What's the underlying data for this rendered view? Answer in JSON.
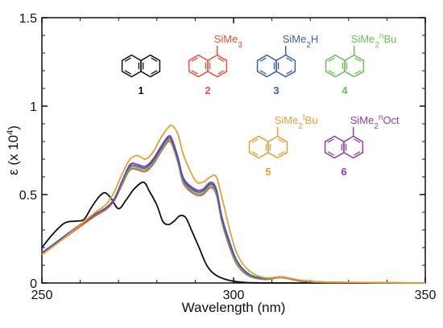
{
  "chart_data": {
    "type": "line",
    "xlabel": "Wavelength (nm)",
    "ylabel": "ε (x 10",
    "ylabel_exponent": "4",
    "ylabel_tail": ")",
    "xlim": [
      250,
      350
    ],
    "ylim": [
      0,
      1.5
    ],
    "x_ticks": [
      250,
      300,
      350
    ],
    "x_tick_labels": [
      "250",
      "300",
      "350"
    ],
    "y_ticks": [
      0,
      0.5,
      1,
      1.5
    ],
    "y_tick_labels": [
      "0",
      "0.5",
      "1",
      "1.5"
    ],
    "grid": false,
    "series": [
      {
        "name": "1",
        "color": "#111111",
        "points": [
          [
            250,
            0.2
          ],
          [
            253,
            0.28
          ],
          [
            256,
            0.34
          ],
          [
            259,
            0.35
          ],
          [
            261,
            0.36
          ],
          [
            263,
            0.43
          ],
          [
            265,
            0.49
          ],
          [
            266.5,
            0.51
          ],
          [
            268,
            0.48
          ],
          [
            270,
            0.42
          ],
          [
            272,
            0.47
          ],
          [
            274,
            0.53
          ],
          [
            276.5,
            0.57
          ],
          [
            278,
            0.52
          ],
          [
            280,
            0.44
          ],
          [
            281.5,
            0.35
          ],
          [
            283,
            0.33
          ],
          [
            284.5,
            0.35
          ],
          [
            286,
            0.38
          ],
          [
            287.5,
            0.37
          ],
          [
            289,
            0.3
          ],
          [
            291,
            0.2
          ],
          [
            293,
            0.1
          ],
          [
            295,
            0.05
          ],
          [
            298,
            0.02
          ],
          [
            302,
            0.005
          ],
          [
            310,
            0.0
          ],
          [
            350,
            0.0
          ]
        ]
      },
      {
        "name": "2",
        "color": "#e8503a",
        "points": [
          [
            250,
            0.16
          ],
          [
            255,
            0.24
          ],
          [
            260,
            0.32
          ],
          [
            264,
            0.38
          ],
          [
            267,
            0.42
          ],
          [
            269,
            0.47
          ],
          [
            271,
            0.56
          ],
          [
            273,
            0.64
          ],
          [
            275,
            0.64
          ],
          [
            277,
            0.63
          ],
          [
            279,
            0.67
          ],
          [
            281,
            0.74
          ],
          [
            283,
            0.8
          ],
          [
            284,
            0.78
          ],
          [
            285.5,
            0.68
          ],
          [
            287,
            0.56
          ],
          [
            290,
            0.5
          ],
          [
            292,
            0.5
          ],
          [
            294,
            0.54
          ],
          [
            295.5,
            0.5
          ],
          [
            297,
            0.34
          ],
          [
            299,
            0.2
          ],
          [
            301,
            0.1
          ],
          [
            304,
            0.04
          ],
          [
            308,
            0.02
          ],
          [
            312,
            0.03
          ],
          [
            314,
            0.025
          ],
          [
            318,
            0.01
          ],
          [
            325,
            0.003
          ],
          [
            350,
            0.0
          ]
        ]
      },
      {
        "name": "3",
        "color": "#3a5fb0",
        "points": [
          [
            250,
            0.17
          ],
          [
            255,
            0.25
          ],
          [
            260,
            0.33
          ],
          [
            264,
            0.39
          ],
          [
            267,
            0.43
          ],
          [
            269,
            0.48
          ],
          [
            271,
            0.58
          ],
          [
            273,
            0.66
          ],
          [
            275,
            0.66
          ],
          [
            277,
            0.65
          ],
          [
            279,
            0.69
          ],
          [
            281,
            0.76
          ],
          [
            283,
            0.82
          ],
          [
            284,
            0.8
          ],
          [
            285.5,
            0.7
          ],
          [
            287,
            0.58
          ],
          [
            290,
            0.52
          ],
          [
            292,
            0.52
          ],
          [
            294,
            0.56
          ],
          [
            295.5,
            0.52
          ],
          [
            297,
            0.36
          ],
          [
            299,
            0.22
          ],
          [
            301,
            0.12
          ],
          [
            304,
            0.05
          ],
          [
            308,
            0.025
          ],
          [
            312,
            0.035
          ],
          [
            314,
            0.03
          ],
          [
            318,
            0.012
          ],
          [
            325,
            0.004
          ],
          [
            350,
            0.0
          ]
        ]
      },
      {
        "name": "4",
        "color": "#6bbf59",
        "points": [
          [
            250,
            0.17
          ],
          [
            255,
            0.25
          ],
          [
            260,
            0.33
          ],
          [
            264,
            0.39
          ],
          [
            267,
            0.43
          ],
          [
            269,
            0.48
          ],
          [
            271,
            0.57
          ],
          [
            273,
            0.65
          ],
          [
            275,
            0.65
          ],
          [
            277,
            0.64
          ],
          [
            279,
            0.68
          ],
          [
            281,
            0.75
          ],
          [
            283,
            0.81
          ],
          [
            284,
            0.79
          ],
          [
            285.5,
            0.69
          ],
          [
            287,
            0.57
          ],
          [
            290,
            0.51
          ],
          [
            292,
            0.51
          ],
          [
            294,
            0.55
          ],
          [
            295.5,
            0.51
          ],
          [
            297,
            0.35
          ],
          [
            299,
            0.21
          ],
          [
            301,
            0.11
          ],
          [
            304,
            0.045
          ],
          [
            308,
            0.022
          ],
          [
            312,
            0.032
          ],
          [
            314,
            0.027
          ],
          [
            318,
            0.011
          ],
          [
            325,
            0.003
          ],
          [
            350,
            0.0
          ]
        ]
      },
      {
        "name": "5",
        "color": "#e8a032",
        "points": [
          [
            250,
            0.16
          ],
          [
            255,
            0.24
          ],
          [
            260,
            0.33
          ],
          [
            264,
            0.4
          ],
          [
            267,
            0.45
          ],
          [
            269,
            0.52
          ],
          [
            271,
            0.62
          ],
          [
            273,
            0.7
          ],
          [
            275,
            0.72
          ],
          [
            277,
            0.7
          ],
          [
            279,
            0.74
          ],
          [
            281,
            0.82
          ],
          [
            283,
            0.88
          ],
          [
            284,
            0.89
          ],
          [
            285.5,
            0.84
          ],
          [
            287,
            0.72
          ],
          [
            290,
            0.58
          ],
          [
            292,
            0.57
          ],
          [
            294,
            0.6
          ],
          [
            295.5,
            0.6
          ],
          [
            297,
            0.48
          ],
          [
            299,
            0.3
          ],
          [
            301,
            0.16
          ],
          [
            304,
            0.07
          ],
          [
            308,
            0.03
          ],
          [
            312,
            0.035
          ],
          [
            314,
            0.03
          ],
          [
            318,
            0.015
          ],
          [
            325,
            0.005
          ],
          [
            350,
            0.0
          ]
        ]
      },
      {
        "name": "6",
        "color": "#8e3fa0",
        "points": [
          [
            250,
            0.17
          ],
          [
            255,
            0.25
          ],
          [
            260,
            0.33
          ],
          [
            264,
            0.39
          ],
          [
            267,
            0.43
          ],
          [
            269,
            0.48
          ],
          [
            271,
            0.58
          ],
          [
            273,
            0.67
          ],
          [
            275,
            0.67
          ],
          [
            277,
            0.66
          ],
          [
            279,
            0.7
          ],
          [
            281,
            0.77
          ],
          [
            283,
            0.83
          ],
          [
            284,
            0.81
          ],
          [
            285.5,
            0.71
          ],
          [
            287,
            0.59
          ],
          [
            290,
            0.53
          ],
          [
            292,
            0.53
          ],
          [
            294,
            0.57
          ],
          [
            295.5,
            0.53
          ],
          [
            297,
            0.37
          ],
          [
            299,
            0.23
          ],
          [
            301,
            0.12
          ],
          [
            304,
            0.05
          ],
          [
            308,
            0.025
          ],
          [
            312,
            0.035
          ],
          [
            314,
            0.03
          ],
          [
            318,
            0.012
          ],
          [
            325,
            0.004
          ],
          [
            350,
            0.0
          ]
        ]
      }
    ]
  },
  "molecules": [
    {
      "id": "1",
      "color": "#111111",
      "substituent": "",
      "superscript": "",
      "tail": ""
    },
    {
      "id": "2",
      "color": "#e8503a",
      "substituent": "SiMe",
      "subscript": "3",
      "superscript": "",
      "tail": ""
    },
    {
      "id": "3",
      "color": "#3a5fb0",
      "substituent": "SiMe",
      "subscript": "2",
      "superscript": "",
      "tail": "H"
    },
    {
      "id": "4",
      "color": "#6bbf59",
      "substituent": "SiMe",
      "subscript": "2",
      "superscript": "n",
      "tail": "Bu"
    },
    {
      "id": "5",
      "color": "#e8a032",
      "substituent": "SiMe",
      "subscript": "2",
      "superscript": "t",
      "tail": "Bu"
    },
    {
      "id": "6",
      "color": "#8e3fa0",
      "substituent": "SiMe",
      "subscript": "2",
      "superscript": "n",
      "tail": "Oct"
    }
  ]
}
